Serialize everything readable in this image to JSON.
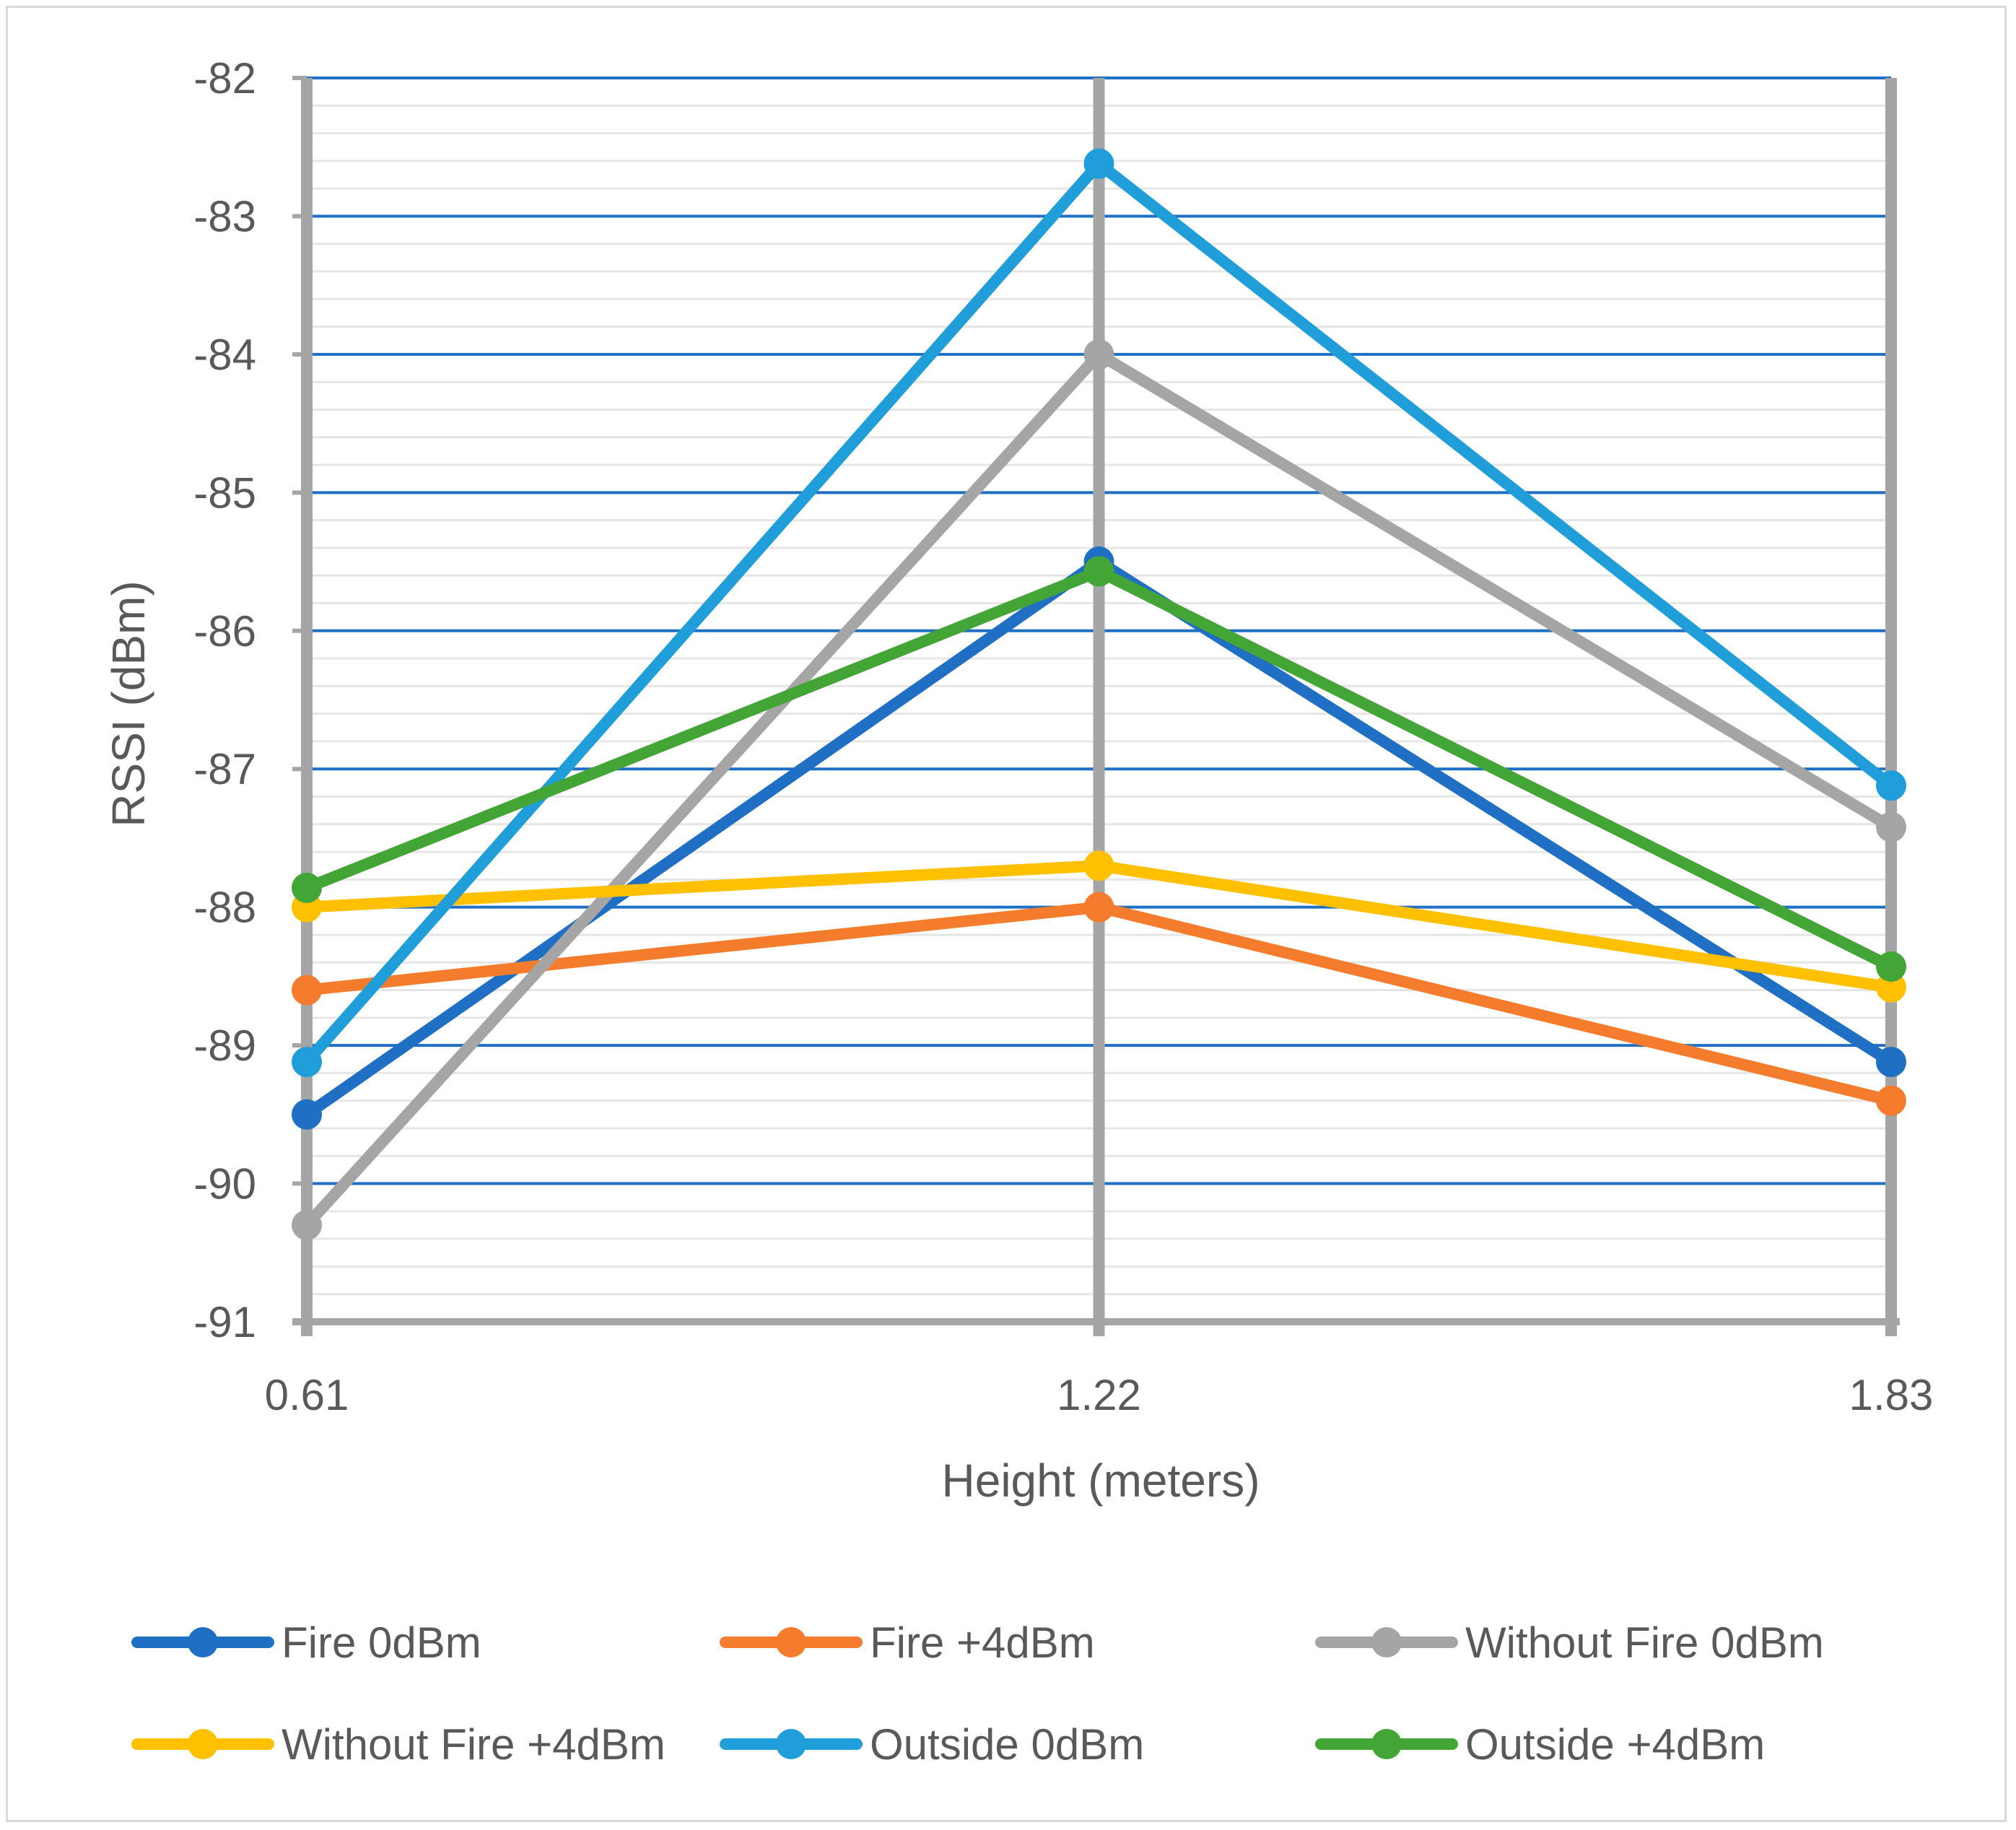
{
  "chart_data": {
    "type": "line",
    "title": "",
    "xlabel": "Height (meters)",
    "ylabel": "RSSI (dBm)",
    "categories": [
      "0.61",
      "1.22",
      "1.83"
    ],
    "ylim": [
      -91,
      -82
    ],
    "yticks": [
      -82,
      -83,
      -84,
      -85,
      -86,
      -87,
      -88,
      -89,
      -90,
      -91
    ],
    "ytick_labels": [
      "-82",
      "-83",
      "-84",
      "-85",
      "-86",
      "-87",
      "-88",
      "-89",
      "-90",
      "-91"
    ],
    "grid": true,
    "legend_position": "bottom",
    "series": [
      {
        "name": "Fire 0dBm",
        "color": "#1f6fc5",
        "values": [
          -89.5,
          -85.5,
          -89.12
        ]
      },
      {
        "name": "Fire +4dBm",
        "color": "#f47c2c",
        "values": [
          -88.6,
          -88.0,
          -89.4
        ]
      },
      {
        "name": "Without Fire 0dBm",
        "color": "#a5a5a5",
        "values": [
          -90.3,
          -84.0,
          -87.42
        ]
      },
      {
        "name": "Without Fire +4dBm",
        "color": "#ffc000",
        "values": [
          -88.0,
          -87.7,
          -88.58
        ]
      },
      {
        "name": "Outside 0dBm",
        "color": "#1f9ed9",
        "values": [
          -89.12,
          -82.62,
          -87.12
        ]
      },
      {
        "name": "Outside +4dBm",
        "color": "#43a535",
        "values": [
          -87.86,
          -85.57,
          -88.43
        ]
      }
    ]
  },
  "colors": {
    "major_grid": "#1f6fc5",
    "minor_grid": "#e6e6e6",
    "vertical_grid": "#a5a5a5",
    "text": "#595959"
  }
}
